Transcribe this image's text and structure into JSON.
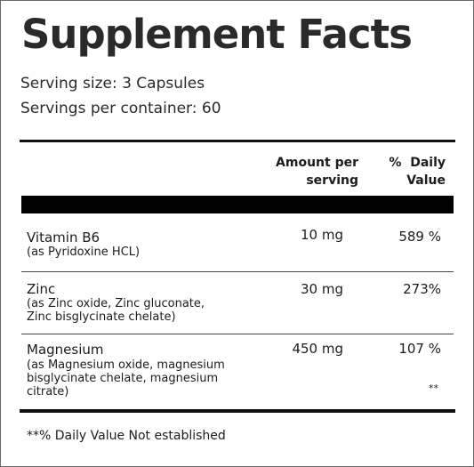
{
  "title": "Supplement Facts",
  "serving_size": "Serving size: 3 Capsules",
  "servings_per_container": "Servings per container: 60",
  "columns": {
    "amount_line1": "Amount per",
    "amount_line2": "serving",
    "dv_line1": "%  Daily",
    "dv_line2": "Value"
  },
  "rows": [
    {
      "name": "Vitamin B6",
      "detail": [
        "(as Pyridoxine HCL)"
      ],
      "amount": "10 mg",
      "daily_value": "589 %"
    },
    {
      "name": "Zinc",
      "detail": [
        "(as Zinc oxide, Zinc gluconate,",
        "Zinc bisglycinate chelate)"
      ],
      "amount": "30 mg",
      "daily_value": "273%"
    },
    {
      "name": "Magnesium",
      "detail": [
        "(as Magnesium oxide, magnesium",
        "bisglycinate chelate, magnesium",
        "citrate)"
      ],
      "amount": "450 mg",
      "daily_value": "107 %",
      "marker": "**"
    }
  ],
  "footnote": "**% Daily Value Not established"
}
